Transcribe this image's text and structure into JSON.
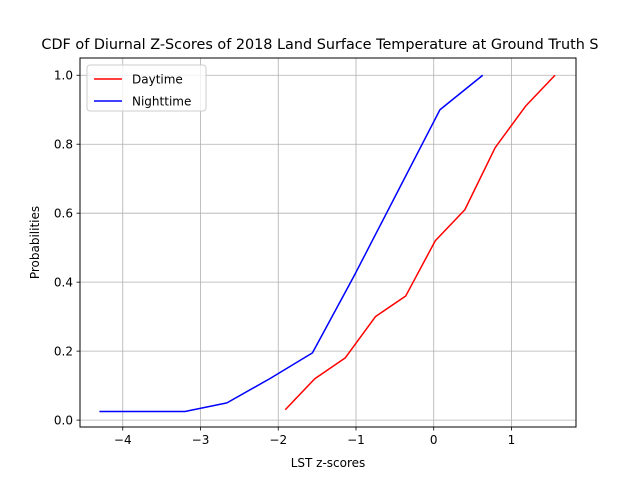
{
  "chart_data": {
    "type": "line",
    "title": "CDF of Diurnal Z-Scores of 2018 Land Surface Temperature at Ground Truth S",
    "xlabel": "LST z-scores",
    "ylabel": "Probabilities",
    "xlim": [
      -4.55,
      1.83
    ],
    "ylim": [
      -0.02,
      1.05
    ],
    "xticks": [
      -4,
      -3,
      -2,
      -1,
      0,
      1
    ],
    "xtick_labels": [
      "−4",
      "−3",
      "−2",
      "−1",
      "0",
      "1"
    ],
    "yticks": [
      0.0,
      0.2,
      0.4,
      0.6,
      0.8,
      1.0
    ],
    "ytick_labels": [
      "0.0",
      "0.2",
      "0.4",
      "0.6",
      "0.8",
      "1.0"
    ],
    "grid": true,
    "legend_position": "top-left",
    "series": [
      {
        "name": "Daytime",
        "color": "#ff0000",
        "x": [
          -1.91,
          -1.53,
          -1.14,
          -0.75,
          -0.36,
          0.02,
          0.4,
          0.79,
          1.18,
          1.56
        ],
        "y": [
          0.03,
          0.12,
          0.18,
          0.3,
          0.36,
          0.52,
          0.61,
          0.79,
          0.91,
          1.0
        ]
      },
      {
        "name": "Nighttime",
        "color": "#0000ff",
        "x": [
          -4.3,
          -3.75,
          -3.2,
          -2.66,
          -2.11,
          -1.56,
          -1.02,
          -0.47,
          0.08,
          0.63
        ],
        "y": [
          0.025,
          0.025,
          0.025,
          0.05,
          0.12,
          0.195,
          0.42,
          0.66,
          0.9,
          1.0
        ]
      }
    ]
  }
}
